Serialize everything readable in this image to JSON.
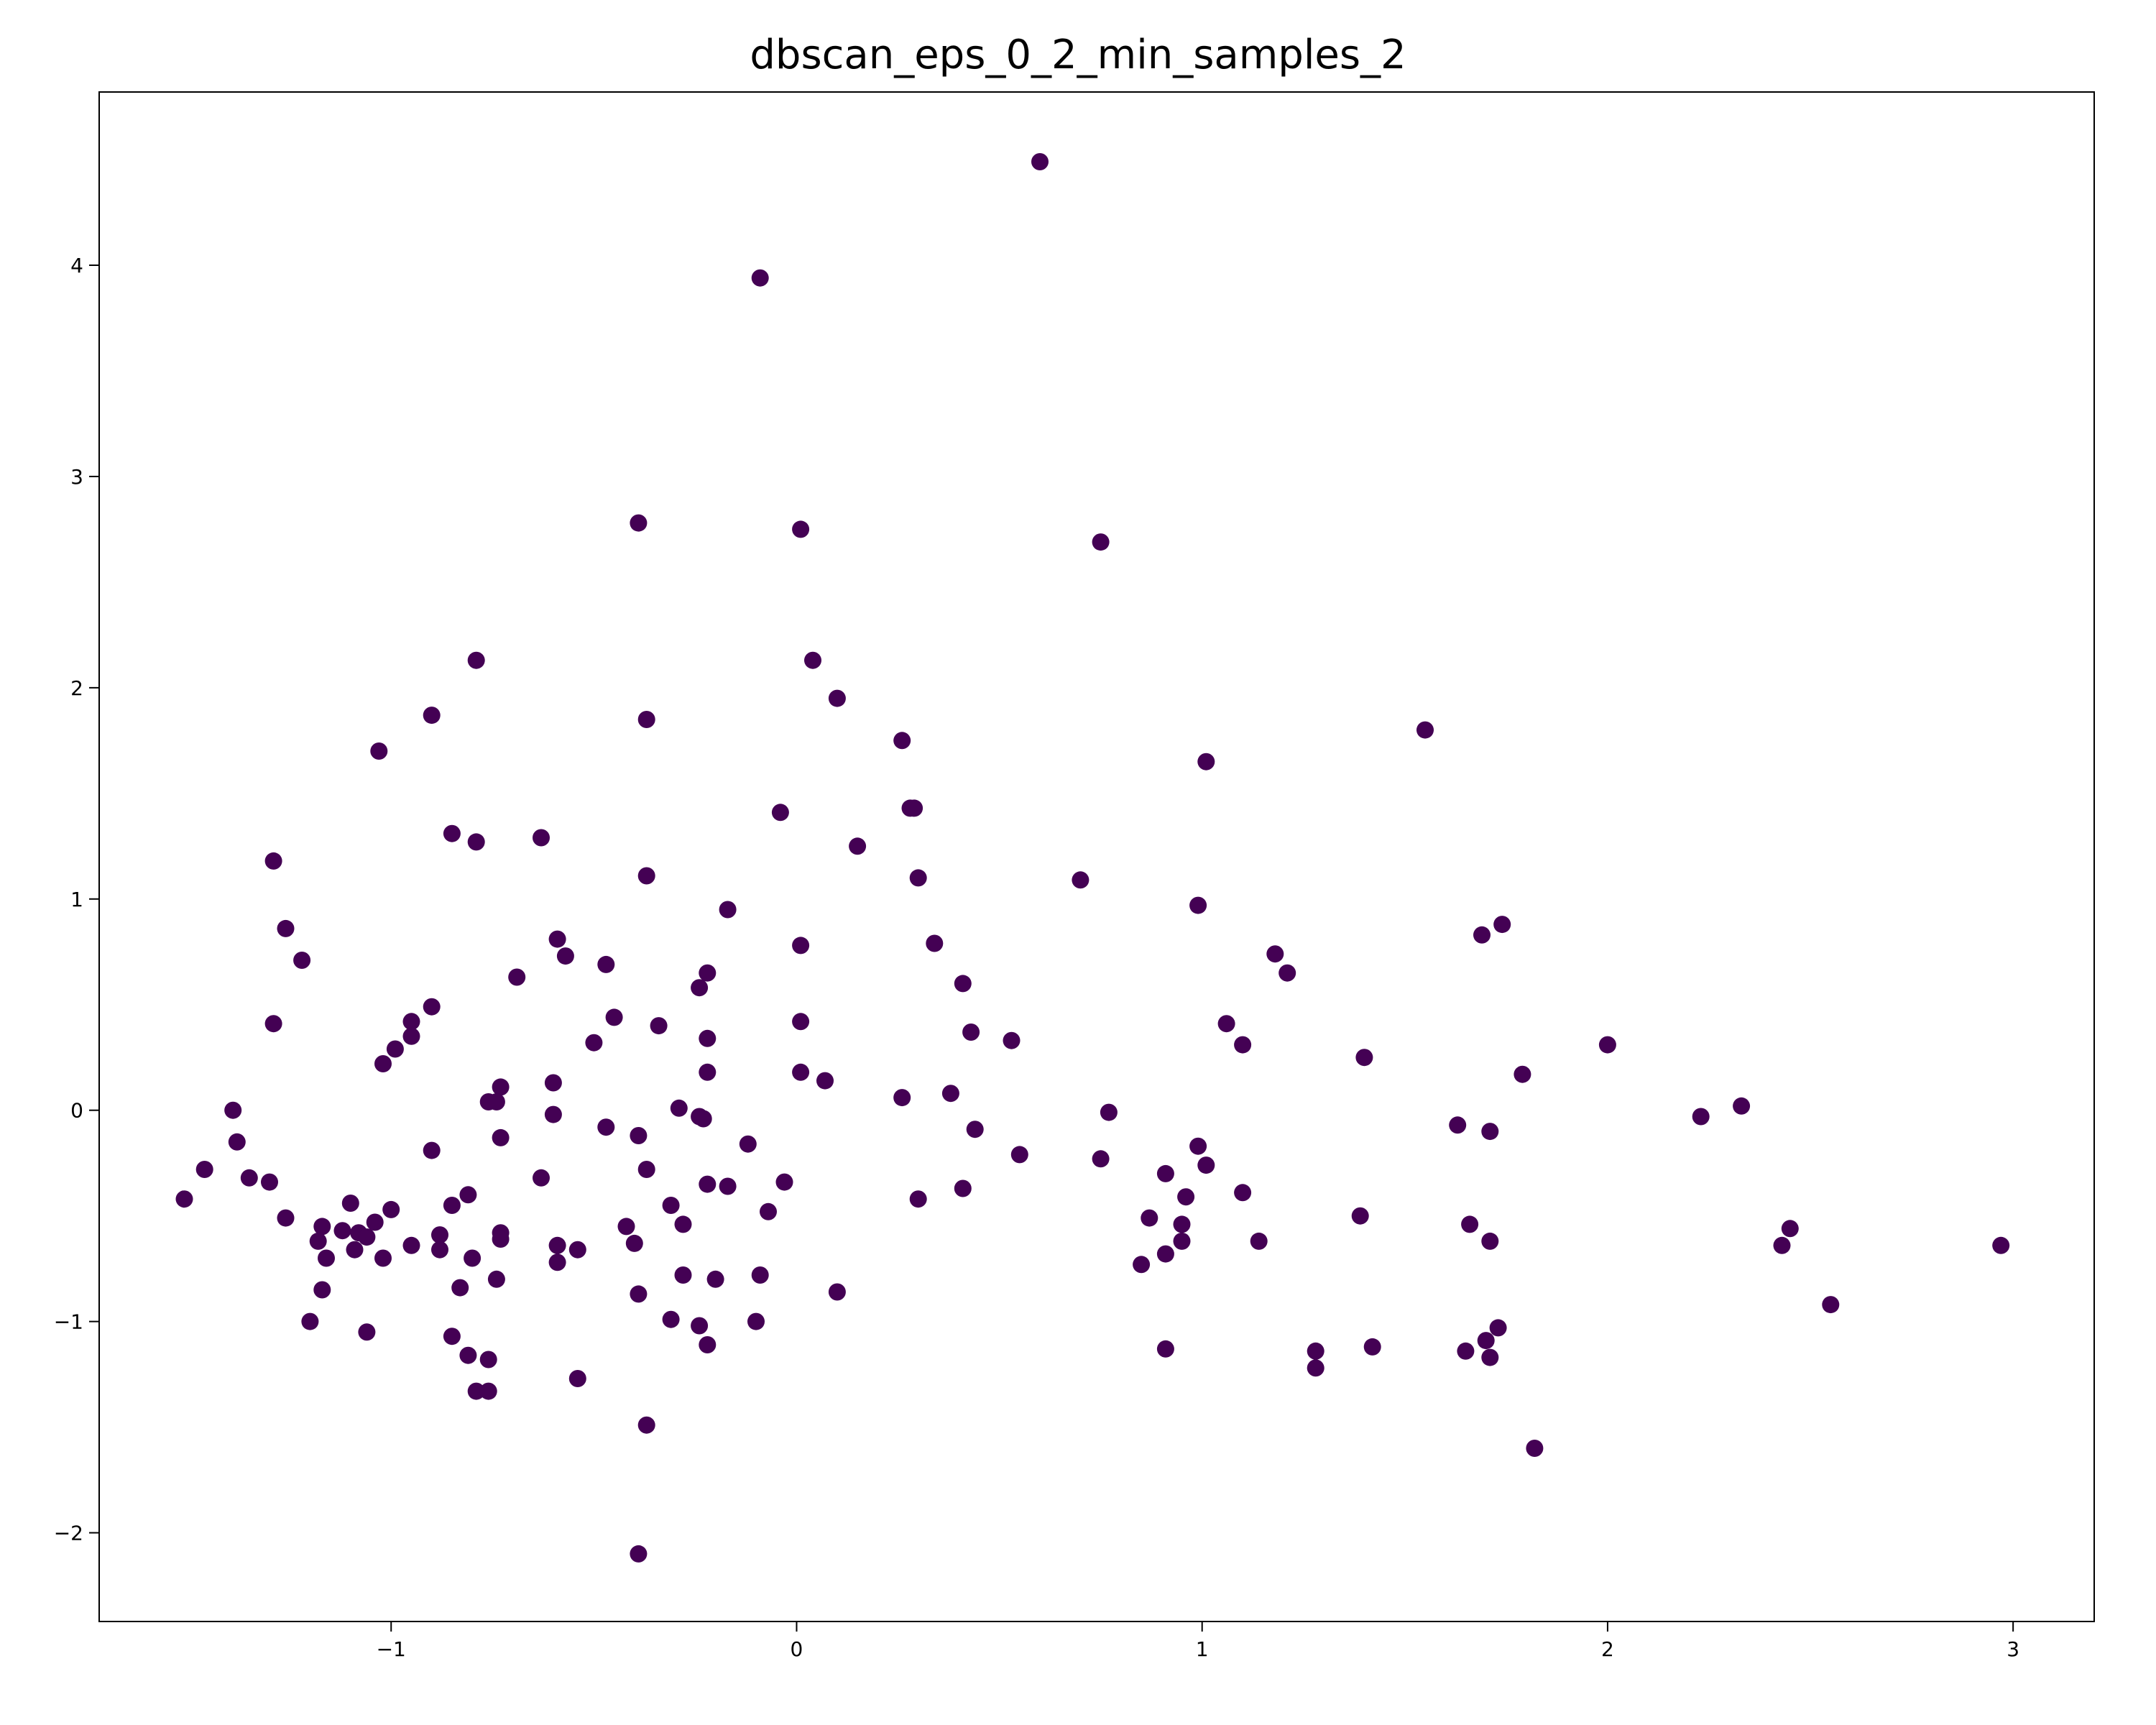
{
  "chart_data": {
    "type": "scatter",
    "title": "dbscan_eps_0_2_min_samples_2",
    "xlabel": "",
    "ylabel": "",
    "xlim": [
      -1.72,
      3.2
    ],
    "ylim": [
      -2.42,
      4.82
    ],
    "x_ticks": [
      -1,
      0,
      1,
      2,
      3
    ],
    "y_ticks": [
      -2,
      -1,
      0,
      1,
      2,
      3,
      4
    ],
    "x_tick_labels": [
      "−1",
      "0",
      "1",
      "2",
      "3"
    ],
    "y_tick_labels": [
      "−2",
      "−1",
      "0",
      "1",
      "2",
      "3",
      "4"
    ],
    "grid": false,
    "point_color": "#440154",
    "points": [
      [
        0.6,
        4.49
      ],
      [
        -0.09,
        3.94
      ],
      [
        -0.39,
        2.78
      ],
      [
        0.01,
        2.75
      ],
      [
        0.75,
        2.69
      ],
      [
        -0.79,
        2.13
      ],
      [
        0.04,
        2.13
      ],
      [
        0.1,
        1.95
      ],
      [
        -0.9,
        1.87
      ],
      [
        -0.37,
        1.85
      ],
      [
        1.55,
        1.8
      ],
      [
        0.26,
        1.75
      ],
      [
        -1.03,
        1.7
      ],
      [
        1.01,
        1.65
      ],
      [
        0.28,
        1.43
      ],
      [
        0.29,
        1.43
      ],
      [
        -0.04,
        1.41
      ],
      [
        -0.85,
        1.31
      ],
      [
        -0.63,
        1.29
      ],
      [
        -0.79,
        1.27
      ],
      [
        0.15,
        1.25
      ],
      [
        -1.29,
        1.18
      ],
      [
        -0.37,
        1.11
      ],
      [
        0.3,
        1.1
      ],
      [
        0.7,
        1.09
      ],
      [
        0.99,
        0.97
      ],
      [
        -0.17,
        0.95
      ],
      [
        1.74,
        0.88
      ],
      [
        -1.26,
        0.86
      ],
      [
        1.69,
        0.83
      ],
      [
        -0.59,
        0.81
      ],
      [
        0.34,
        0.79
      ],
      [
        0.01,
        0.78
      ],
      [
        1.18,
        0.74
      ],
      [
        -0.57,
        0.73
      ],
      [
        -1.22,
        0.71
      ],
      [
        -0.47,
        0.69
      ],
      [
        -0.22,
        0.65
      ],
      [
        1.21,
        0.65
      ],
      [
        -0.69,
        0.63
      ],
      [
        0.41,
        0.6
      ],
      [
        -0.24,
        0.58
      ],
      [
        -0.9,
        0.49
      ],
      [
        -0.45,
        0.44
      ],
      [
        -0.95,
        0.42
      ],
      [
        0.01,
        0.42
      ],
      [
        -1.29,
        0.41
      ],
      [
        1.06,
        0.41
      ],
      [
        -0.34,
        0.4
      ],
      [
        0.43,
        0.37
      ],
      [
        -0.95,
        0.35
      ],
      [
        -0.22,
        0.34
      ],
      [
        0.53,
        0.33
      ],
      [
        -0.5,
        0.32
      ],
      [
        1.1,
        0.31
      ],
      [
        2.0,
        0.31
      ],
      [
        -0.99,
        0.29
      ],
      [
        1.4,
        0.25
      ],
      [
        -1.02,
        0.22
      ],
      [
        -0.22,
        0.18
      ],
      [
        0.01,
        0.18
      ],
      [
        1.79,
        0.17
      ],
      [
        0.07,
        0.14
      ],
      [
        -0.6,
        0.13
      ],
      [
        -0.73,
        0.11
      ],
      [
        0.38,
        0.08
      ],
      [
        0.26,
        0.06
      ],
      [
        -0.76,
        0.04
      ],
      [
        -0.74,
        0.04
      ],
      [
        -0.29,
        0.01
      ],
      [
        2.33,
        0.02
      ],
      [
        -1.39,
        0.0
      ],
      [
        -0.6,
        -0.02
      ],
      [
        0.77,
        -0.01
      ],
      [
        -0.24,
        -0.03
      ],
      [
        -0.23,
        -0.04
      ],
      [
        2.23,
        -0.03
      ],
      [
        1.63,
        -0.07
      ],
      [
        -0.47,
        -0.08
      ],
      [
        0.44,
        -0.09
      ],
      [
        1.71,
        -0.1
      ],
      [
        -0.39,
        -0.12
      ],
      [
        -0.73,
        -0.13
      ],
      [
        -1.38,
        -0.15
      ],
      [
        -0.12,
        -0.16
      ],
      [
        0.99,
        -0.17
      ],
      [
        -0.9,
        -0.19
      ],
      [
        0.55,
        -0.21
      ],
      [
        0.75,
        -0.23
      ],
      [
        1.01,
        -0.26
      ],
      [
        -1.46,
        -0.28
      ],
      [
        -0.37,
        -0.28
      ],
      [
        0.91,
        -0.3
      ],
      [
        -1.35,
        -0.32
      ],
      [
        -0.63,
        -0.32
      ],
      [
        -1.3,
        -0.34
      ],
      [
        -0.03,
        -0.34
      ],
      [
        -0.22,
        -0.35
      ],
      [
        -0.17,
        -0.36
      ],
      [
        0.41,
        -0.37
      ],
      [
        1.1,
        -0.39
      ],
      [
        -0.81,
        -0.4
      ],
      [
        0.96,
        -0.41
      ],
      [
        -1.51,
        -0.42
      ],
      [
        0.3,
        -0.42
      ],
      [
        -1.1,
        -0.44
      ],
      [
        -0.85,
        -0.45
      ],
      [
        -0.31,
        -0.45
      ],
      [
        -1.0,
        -0.47
      ],
      [
        -0.07,
        -0.48
      ],
      [
        1.39,
        -0.5
      ],
      [
        -1.26,
        -0.51
      ],
      [
        0.87,
        -0.51
      ],
      [
        -1.04,
        -0.53
      ],
      [
        -0.28,
        -0.54
      ],
      [
        1.66,
        -0.54
      ],
      [
        0.95,
        -0.54
      ],
      [
        -1.17,
        -0.55
      ],
      [
        -0.42,
        -0.55
      ],
      [
        -1.12,
        -0.57
      ],
      [
        2.45,
        -0.56
      ],
      [
        -1.08,
        -0.58
      ],
      [
        -0.73,
        -0.58
      ],
      [
        -0.88,
        -0.59
      ],
      [
        -1.06,
        -0.6
      ],
      [
        -0.73,
        -0.61
      ],
      [
        -1.18,
        -0.62
      ],
      [
        1.14,
        -0.62
      ],
      [
        0.95,
        -0.62
      ],
      [
        1.71,
        -0.62
      ],
      [
        -0.4,
        -0.63
      ],
      [
        -0.95,
        -0.64
      ],
      [
        -0.59,
        -0.64
      ],
      [
        2.43,
        -0.64
      ],
      [
        2.97,
        -0.64
      ],
      [
        -1.09,
        -0.66
      ],
      [
        -0.88,
        -0.66
      ],
      [
        -0.54,
        -0.66
      ],
      [
        0.91,
        -0.68
      ],
      [
        -1.02,
        -0.7
      ],
      [
        -1.16,
        -0.7
      ],
      [
        -0.8,
        -0.7
      ],
      [
        -0.59,
        -0.72
      ],
      [
        0.85,
        -0.73
      ],
      [
        -0.28,
        -0.78
      ],
      [
        -0.09,
        -0.78
      ],
      [
        -0.74,
        -0.8
      ],
      [
        -0.2,
        -0.8
      ],
      [
        -0.83,
        -0.84
      ],
      [
        -1.17,
        -0.85
      ],
      [
        0.1,
        -0.86
      ],
      [
        -0.39,
        -0.87
      ],
      [
        2.55,
        -0.92
      ],
      [
        -0.31,
        -0.99
      ],
      [
        -1.2,
        -1.0
      ],
      [
        -0.1,
        -1.0
      ],
      [
        -0.24,
        -1.02
      ],
      [
        1.73,
        -1.03
      ],
      [
        -1.06,
        -1.05
      ],
      [
        -0.85,
        -1.07
      ],
      [
        1.7,
        -1.09
      ],
      [
        -0.22,
        -1.11
      ],
      [
        0.91,
        -1.13
      ],
      [
        1.42,
        -1.12
      ],
      [
        1.28,
        -1.14
      ],
      [
        1.65,
        -1.14
      ],
      [
        -0.81,
        -1.16
      ],
      [
        1.71,
        -1.17
      ],
      [
        -0.76,
        -1.18
      ],
      [
        1.28,
        -1.22
      ],
      [
        -0.54,
        -1.27
      ],
      [
        -0.79,
        -1.33
      ],
      [
        -0.76,
        -1.33
      ],
      [
        -0.37,
        -1.49
      ],
      [
        1.82,
        -1.6
      ],
      [
        -0.39,
        -2.1
      ]
    ]
  }
}
